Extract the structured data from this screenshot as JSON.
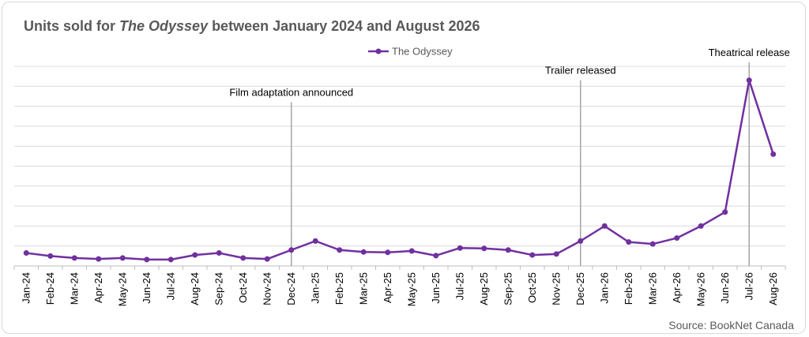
{
  "chart_data": {
    "type": "line",
    "title_prefix": "Units sold for ",
    "title_italic": "The Odyssey",
    "title_suffix": " between January 2024 and August 2026",
    "legend": "top",
    "grid": true,
    "ylim": [
      0,
      100
    ],
    "series": [
      {
        "name": "The Odyssey",
        "color": "#7030a0",
        "values": [
          6.5,
          5,
          4,
          3.5,
          4,
          3.2,
          3.2,
          5.5,
          6.5,
          4,
          3.5,
          8,
          12.5,
          8,
          7,
          6.8,
          7.5,
          5.2,
          9,
          8.8,
          8,
          5.5,
          6,
          12.5,
          20,
          12,
          11,
          14,
          20,
          27,
          93,
          56
        ]
      }
    ],
    "categories": [
      "Jan-24",
      "Feb-24",
      "Mar-24",
      "Apr-24",
      "May-24",
      "Jun-24",
      "Jul-24",
      "Aug-24",
      "Sep-24",
      "Oct-24",
      "Nov-24",
      "Dec-24",
      "Jan-25",
      "Feb-25",
      "Mar-25",
      "Apr-25",
      "May-25",
      "Jun-25",
      "Jul-25",
      "Aug-25",
      "Sep-25",
      "Oct-25",
      "Nov-25",
      "Dec-25",
      "Jan-26",
      "Feb-26",
      "Mar-26",
      "Apr-26",
      "May-26",
      "Jun-26",
      "Jul-26",
      "Aug-26"
    ],
    "annotations": [
      {
        "category_index": 11,
        "label": "Film adaptation announced",
        "y_top": 82
      },
      {
        "category_index": 23,
        "label": "Trailer released",
        "y_top": 93
      },
      {
        "category_index": 30,
        "label": "Theatrical release",
        "y_top": 102
      }
    ],
    "source": "Source: BookNet Canada"
  }
}
